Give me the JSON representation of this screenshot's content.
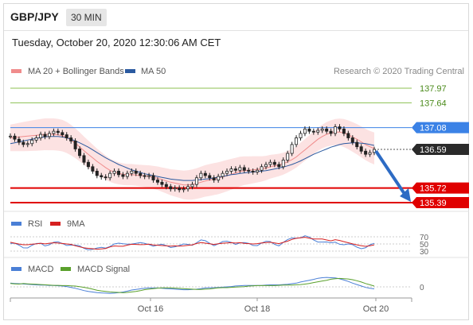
{
  "header": {
    "symbol": "GBP/JPY",
    "interval": "30 MIN"
  },
  "datetime": "Tuesday, October 20, 2020 12:30:06 AM CET",
  "legend": {
    "ma20_label": "MA 20 + Bollinger Bands",
    "ma50_label": "MA 50",
    "credit": "Research © 2020 Trading Central"
  },
  "colors": {
    "price": "#222222",
    "ma20": "#f08c8c",
    "ma50": "#2b5aa0",
    "band": "#fbd8d8",
    "support": "#e00000",
    "resistance_green": "#8cc152",
    "pivot": "#3b82e6",
    "arrow": "#2d6bc4",
    "rsi": "#4a7fd6",
    "rsi9ma": "#d62020",
    "macd": "#4a7fd6",
    "signal": "#5aa02c"
  },
  "levels": [
    {
      "label": "137.97",
      "value": 137.97,
      "type": "resistance"
    },
    {
      "label": "137.64",
      "value": 137.64,
      "type": "resistance"
    },
    {
      "label": "137.08",
      "value": 137.08,
      "type": "pivot"
    },
    {
      "label": "136.59",
      "value": 136.59,
      "type": "last"
    },
    {
      "label": "135.72",
      "value": 135.72,
      "type": "support"
    },
    {
      "label": "135.39",
      "value": 135.39,
      "type": "support"
    }
  ],
  "rsi_panel": {
    "rsi_label": "RSI",
    "ma_label": "9MA",
    "ticks": [
      "70",
      "50",
      "30"
    ]
  },
  "macd_panel": {
    "macd_label": "MACD",
    "signal_label": "MACD Signal",
    "ticks": [
      "0"
    ]
  },
  "x_axis": {
    "ticks": [
      "Oct 16",
      "Oct 18",
      "Oct 20"
    ]
  },
  "chart_data": {
    "type": "line",
    "title": "GBP/JPY",
    "ylim": [
      135.3,
      138.05
    ],
    "series": [
      {
        "name": "GBP/JPY",
        "values": [
          136.89,
          136.82,
          136.75,
          136.7,
          136.72,
          136.8,
          136.85,
          136.93,
          136.88,
          136.95,
          137.0,
          136.97,
          136.92,
          136.85,
          136.78,
          136.6,
          136.45,
          136.3,
          136.2,
          136.1,
          136.0,
          135.97,
          135.95,
          136.05,
          136.1,
          136.02,
          135.98,
          136.05,
          136.1,
          136.05,
          136.0,
          135.98,
          136.0,
          135.9,
          135.85,
          135.8,
          135.75,
          135.7,
          135.72,
          135.68,
          135.7,
          135.75,
          135.8,
          135.95,
          136.05,
          136.0,
          135.95,
          135.9,
          135.98,
          136.05,
          136.1,
          136.15,
          136.12,
          136.18,
          136.12,
          136.1,
          136.08,
          136.12,
          136.2,
          136.25,
          136.3,
          136.25,
          136.2,
          136.35,
          136.5,
          136.7,
          136.85,
          136.95,
          137.05,
          137.0,
          136.98,
          137.02,
          137.05,
          137.0,
          136.95,
          137.1,
          137.05,
          136.95,
          136.85,
          136.75,
          136.65,
          136.55,
          136.48,
          136.52,
          136.59
        ]
      },
      {
        "name": "MA 20",
        "values": [
          136.85,
          136.86,
          136.87,
          136.88,
          136.89,
          136.9,
          136.91,
          136.92,
          136.93,
          136.93,
          136.93,
          136.92,
          136.9,
          136.86,
          136.8,
          136.73,
          136.65,
          136.56,
          136.48,
          136.4,
          136.32,
          136.25,
          136.18,
          136.12,
          136.08,
          136.05,
          136.03,
          136.02,
          136.02,
          136.01,
          136.0,
          135.99,
          135.98,
          135.96,
          135.94,
          135.91,
          135.88,
          135.85,
          135.83,
          135.81,
          135.79,
          135.79,
          135.8,
          135.82,
          135.85,
          135.88,
          135.9,
          135.92,
          135.94,
          135.97,
          136.0,
          136.03,
          136.06,
          136.09,
          136.11,
          136.12,
          136.13,
          136.14,
          136.15,
          136.17,
          136.2,
          136.22,
          136.24,
          136.27,
          136.31,
          136.36,
          136.42,
          136.5,
          136.58,
          136.66,
          136.74,
          136.82,
          136.88,
          136.93,
          136.96,
          136.98,
          136.98,
          136.96,
          136.92,
          136.87,
          136.82,
          136.76,
          136.7,
          136.65,
          136.61
        ]
      },
      {
        "name": "MA 50",
        "values": [
          136.72,
          136.74,
          136.76,
          136.78,
          136.8,
          136.82,
          136.84,
          136.86,
          136.87,
          136.88,
          136.88,
          136.88,
          136.87,
          136.85,
          136.82,
          136.78,
          136.74,
          136.69,
          136.64,
          136.58,
          136.52,
          136.46,
          136.4,
          136.35,
          136.3,
          136.25,
          136.21,
          136.17,
          136.13,
          136.1,
          136.07,
          136.04,
          136.02,
          136.0,
          135.98,
          135.96,
          135.94,
          135.92,
          135.91,
          135.9,
          135.89,
          135.89,
          135.89,
          135.9,
          135.91,
          135.92,
          135.93,
          135.95,
          135.96,
          135.98,
          136.0,
          136.02,
          136.03,
          136.05,
          136.06,
          136.07,
          136.08,
          136.09,
          136.1,
          136.11,
          136.13,
          136.15,
          136.17,
          136.19,
          136.22,
          136.25,
          136.29,
          136.33,
          136.38,
          136.43,
          136.48,
          136.52,
          136.56,
          136.6,
          136.64,
          136.67,
          136.7,
          136.72,
          136.73,
          136.74,
          136.74,
          136.73,
          136.72,
          136.7,
          136.68
        ]
      }
    ],
    "x_ticks": [
      "Oct 16",
      "Oct 18",
      "Oct 20"
    ]
  }
}
